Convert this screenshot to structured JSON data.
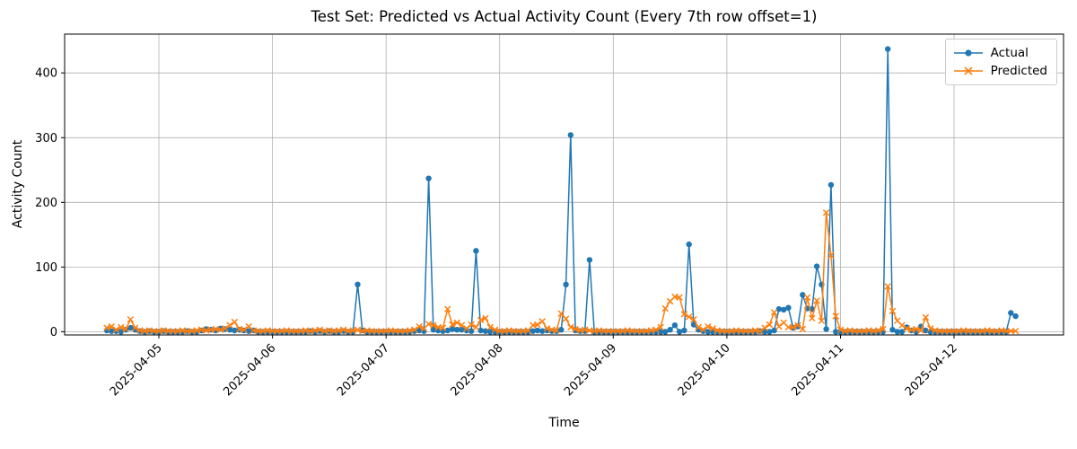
{
  "chart_data": {
    "type": "line",
    "title": "Test Set: Predicted vs Actual Activity Count (Every 7th row offset=1)",
    "xlabel": "Time",
    "ylabel": "Activity Count",
    "x_start": "2025-04-04 13:00",
    "x_freq_hours": 1,
    "x_tick_indices": [
      11,
      35,
      59,
      83,
      107,
      131,
      155,
      179
    ],
    "x_tick_labels": [
      "2025-04-05",
      "2025-04-06",
      "2025-04-07",
      "2025-04-08",
      "2025-04-09",
      "2025-04-10",
      "2025-04-11",
      "2025-04-12"
    ],
    "y_ticks": [
      0,
      100,
      200,
      300,
      400
    ],
    "ylim": [
      -5,
      460
    ],
    "grid": true,
    "legend_position": "upper right",
    "series": [
      {
        "name": "Actual",
        "color": "#1f77b4",
        "marker": "circle",
        "values": [
          2,
          1,
          1,
          0,
          3,
          6,
          3,
          1,
          0,
          1,
          0,
          0,
          1,
          0,
          0,
          0,
          0,
          1,
          0,
          0,
          2,
          4,
          3,
          2,
          5,
          4,
          3,
          2,
          3,
          2,
          1,
          2,
          0,
          0,
          0,
          0,
          0,
          0,
          0,
          0,
          0,
          0,
          0,
          1,
          0,
          1,
          0,
          1,
          0,
          0,
          1,
          0,
          0,
          73,
          2,
          0,
          0,
          0,
          0,
          0,
          0,
          0,
          0,
          0,
          0,
          1,
          2,
          1,
          237,
          3,
          2,
          1,
          2,
          4,
          3,
          3,
          2,
          1,
          125,
          2,
          1,
          0,
          0,
          0,
          0,
          0,
          0,
          0,
          0,
          0,
          1,
          2,
          1,
          2,
          1,
          1,
          3,
          73,
          304,
          2,
          1,
          1,
          111,
          0,
          0,
          0,
          0,
          0,
          0,
          0,
          0,
          0,
          0,
          0,
          0,
          0,
          0,
          0,
          0,
          3,
          10,
          0,
          2,
          135,
          11,
          3,
          1,
          0,
          0,
          0,
          0,
          0,
          0,
          0,
          0,
          0,
          0,
          0,
          1,
          0,
          0,
          2,
          35,
          34,
          37,
          6,
          8,
          57,
          36,
          35,
          101,
          73,
          4,
          227,
          0,
          0,
          0,
          0,
          0,
          0,
          0,
          0,
          0,
          0,
          0,
          437,
          3,
          0,
          0,
          7,
          2,
          0,
          8,
          2,
          0,
          0,
          0,
          0,
          0,
          0,
          0,
          0,
          0,
          0,
          0,
          0,
          0,
          0,
          0,
          0,
          0,
          29,
          24
        ]
      },
      {
        "name": "Predicted",
        "color": "#ff7f0e",
        "marker": "x",
        "values": [
          6,
          8,
          3,
          7,
          4,
          19,
          6,
          2,
          1,
          2,
          1,
          1,
          2,
          1,
          1,
          1,
          2,
          1,
          1,
          2,
          3,
          2,
          3,
          4,
          3,
          5,
          10,
          15,
          4,
          3,
          8,
          2,
          1,
          1,
          2,
          1,
          1,
          1,
          2,
          1,
          1,
          1,
          2,
          1,
          2,
          3,
          1,
          2,
          1,
          2,
          3,
          1,
          2,
          3,
          1,
          2,
          1,
          1,
          1,
          1,
          2,
          1,
          1,
          1,
          2,
          3,
          8,
          5,
          12,
          10,
          7,
          6,
          35,
          11,
          14,
          10,
          5,
          11,
          7,
          18,
          21,
          7,
          3,
          1,
          1,
          2,
          1,
          1,
          1,
          2,
          10,
          11,
          16,
          5,
          3,
          2,
          28,
          20,
          7,
          4,
          2,
          3,
          2,
          1,
          2,
          1,
          1,
          1,
          1,
          1,
          2,
          1,
          1,
          1,
          1,
          2,
          3,
          7,
          36,
          47,
          54,
          53,
          27,
          23,
          19,
          7,
          3,
          8,
          5,
          2,
          1,
          1,
          1,
          2,
          1,
          1,
          1,
          2,
          1,
          6,
          11,
          30,
          8,
          14,
          7,
          7,
          10,
          4,
          53,
          21,
          48,
          17,
          184,
          118,
          24,
          3,
          1,
          2,
          1,
          1,
          1,
          2,
          1,
          2,
          4,
          70,
          32,
          17,
          10,
          5,
          3,
          4,
          2,
          22,
          5,
          2,
          1,
          1,
          1,
          1,
          1,
          2,
          1,
          1,
          1,
          1,
          2,
          1,
          1,
          2,
          1,
          1,
          1
        ]
      }
    ]
  },
  "colors": {
    "actual": "#1f77b4",
    "predicted": "#ff7f0e",
    "grid": "#b0b0b0",
    "spine": "#000000",
    "background": "#ffffff"
  }
}
